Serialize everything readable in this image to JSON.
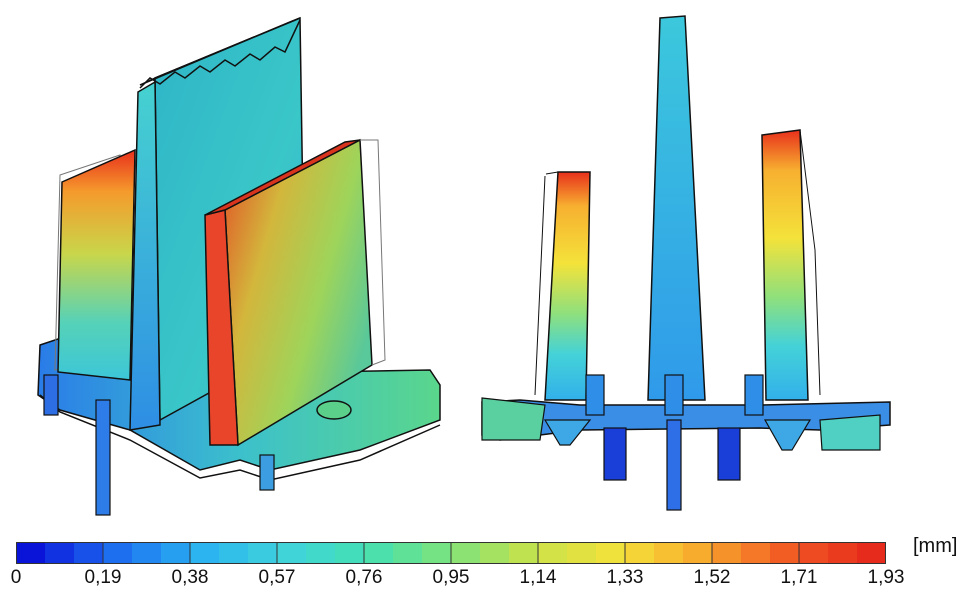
{
  "legend": {
    "unit": "[mm]",
    "ticks": [
      "0",
      "0,19",
      "0,38",
      "0,57",
      "0,76",
      "0,95",
      "1,14",
      "1,33",
      "1,52",
      "1,71",
      "1,93"
    ],
    "min": 0,
    "max": 1.93,
    "colors": [
      "#0a14d8",
      "#1e6cf0",
      "#29b2f2",
      "#3fd3dc",
      "#44e0b4",
      "#7fe27a",
      "#c9e24a",
      "#f4e23a",
      "#f8a82c",
      "#f25a24",
      "#e62a1c"
    ]
  },
  "views": {
    "left": "isometric-view",
    "right": "front-view"
  }
}
